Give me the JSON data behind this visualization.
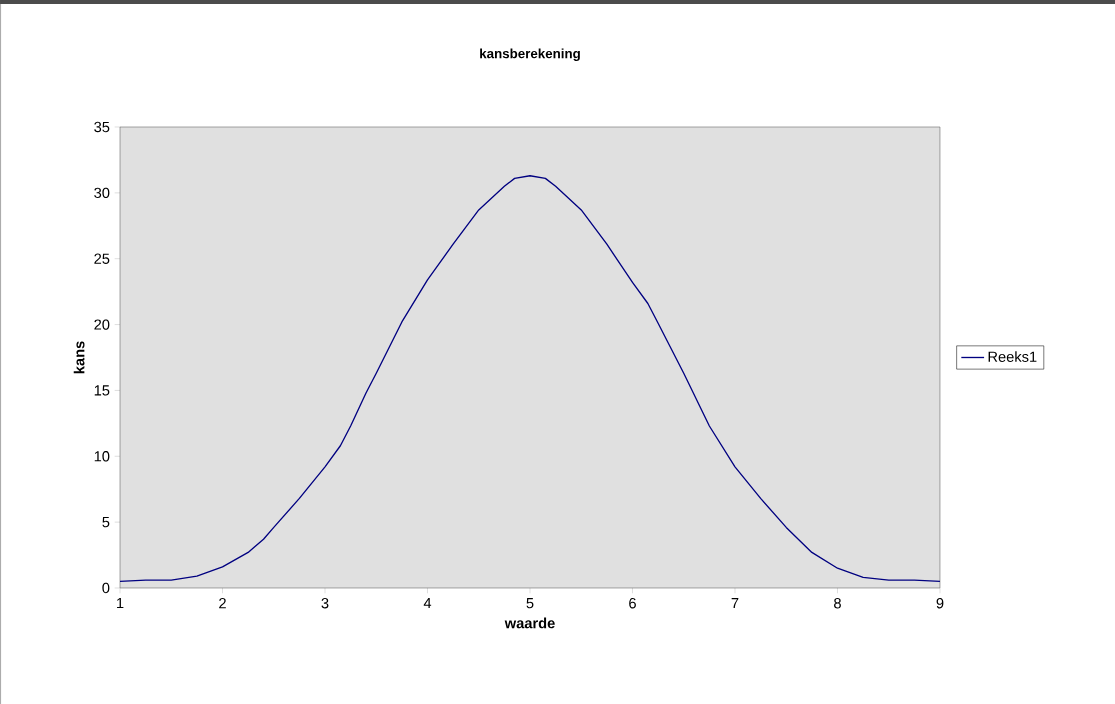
{
  "chart_data": {
    "type": "line",
    "title": "kansberekening",
    "xlabel": "waarde",
    "ylabel": "kans",
    "x": [
      1,
      1.25,
      1.5,
      1.75,
      2,
      2.25,
      2.4,
      2.5,
      2.75,
      3,
      3.15,
      3.25,
      3.4,
      3.5,
      3.75,
      4,
      4.25,
      4.5,
      4.75,
      4.85,
      5,
      5.15,
      5.25,
      5.5,
      5.75,
      6,
      6.15,
      6.25,
      6.5,
      6.75,
      7,
      7.25,
      7.5,
      7.75,
      8,
      8.25,
      8.5,
      8.75,
      9
    ],
    "series": [
      {
        "name": "Reeks1",
        "color": "#000080",
        "values": [
          0.5,
          0.6,
          0.6,
          0.9,
          1.6,
          2.7,
          3.7,
          4.6,
          6.8,
          9.2,
          10.8,
          12.3,
          14.8,
          16.3,
          20.2,
          23.4,
          26.1,
          28.7,
          30.5,
          31.1,
          31.3,
          31.1,
          30.5,
          28.7,
          26.1,
          23.2,
          21.6,
          20.1,
          16.3,
          12.3,
          9.2,
          6.8,
          4.6,
          2.7,
          1.5,
          0.8,
          0.6,
          0.6,
          0.5
        ]
      }
    ],
    "xlim": [
      1,
      9
    ],
    "ylim": [
      0,
      35
    ],
    "xticks": [
      1,
      2,
      3,
      4,
      5,
      6,
      7,
      8,
      9
    ],
    "yticks": [
      0,
      5,
      10,
      15,
      20,
      25,
      30,
      35
    ],
    "legend": "right"
  }
}
